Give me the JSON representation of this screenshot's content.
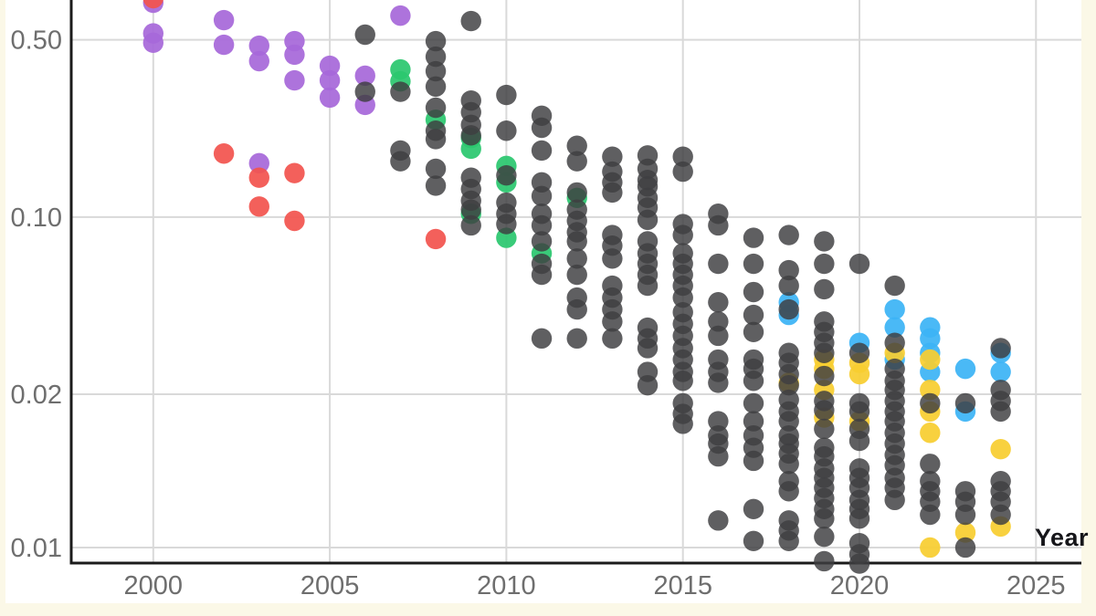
{
  "page": {
    "background_color": "#fbf8e7",
    "panel_color": "#ffffff",
    "gridline_color": "#d9d9d9",
    "axis_color": "#1b1b1b",
    "tick_label_color": "#6e6e6e"
  },
  "chart_data": {
    "type": "scatter",
    "title": "",
    "xlabel": "Year",
    "ylabel": "",
    "y_scale": "log",
    "grid": true,
    "legend": "none",
    "x_ticks": [
      {
        "value": 2000,
        "label": "2000"
      },
      {
        "value": 2005,
        "label": "2005"
      },
      {
        "value": 2010,
        "label": "2010"
      },
      {
        "value": 2015,
        "label": "2015"
      },
      {
        "value": 2020,
        "label": "2020"
      },
      {
        "value": 2025,
        "label": "2025"
      }
    ],
    "y_ticks": [
      {
        "value": 0.5,
        "label": "0.50"
      },
      {
        "value": 0.1,
        "label": "0.10"
      },
      {
        "value": 0.02,
        "label": "0.02"
      },
      {
        "value": 0.01,
        "label": "0.01"
      }
    ],
    "xlim": [
      1997.7,
      2026.7
    ],
    "ylim_visible": [
      0.0093,
      0.715
    ],
    "series": [
      {
        "name": "green",
        "color": "#2bc76f",
        "points": [
          [
            2007,
            0.382
          ],
          [
            2007,
            0.343
          ],
          [
            2008,
            0.242
          ],
          [
            2009,
            0.205
          ],
          [
            2009,
            0.186
          ],
          [
            2009,
            0.103
          ],
          [
            2010,
            0.159
          ],
          [
            2010,
            0.137
          ],
          [
            2010,
            0.0828
          ],
          [
            2011,
            0.0719
          ],
          [
            2012,
            0.119
          ]
        ]
      },
      {
        "name": "purple",
        "color": "#a768d9",
        "points": [
          [
            2000,
            0.7
          ],
          [
            2000,
            0.53
          ],
          [
            2000,
            0.487
          ],
          [
            2002,
            0.598
          ],
          [
            2002,
            0.478
          ],
          [
            2003,
            0.474
          ],
          [
            2003,
            0.412
          ],
          [
            2003,
            0.163
          ],
          [
            2004,
            0.494
          ],
          [
            2004,
            0.437
          ],
          [
            2004,
            0.346
          ],
          [
            2005,
            0.395
          ],
          [
            2005,
            0.346
          ],
          [
            2005,
            0.296
          ],
          [
            2006,
            0.361
          ],
          [
            2006,
            0.277
          ],
          [
            2007,
            0.623
          ]
        ]
      },
      {
        "name": "red",
        "color": "#f2544f",
        "points": [
          [
            2000,
            0.73
          ],
          [
            2002,
            0.178
          ],
          [
            2003,
            0.143
          ],
          [
            2003,
            0.11
          ],
          [
            2004,
            0.149
          ],
          [
            2004,
            0.0966
          ],
          [
            2008,
            0.0819
          ]
        ]
      },
      {
        "name": "blue",
        "color": "#3cb4f5",
        "points": [
          [
            2018,
            0.0461
          ],
          [
            2018,
            0.0411
          ],
          [
            2020,
            0.0319
          ],
          [
            2021,
            0.0432
          ],
          [
            2021,
            0.0367
          ],
          [
            2021,
            0.0274
          ],
          [
            2022,
            0.0367
          ],
          [
            2022,
            0.0332
          ],
          [
            2022,
            0.0291
          ],
          [
            2022,
            0.0245
          ],
          [
            2023,
            0.0252
          ],
          [
            2023,
            0.0185
          ],
          [
            2024,
            0.0291
          ],
          [
            2024,
            0.0245
          ]
        ]
      },
      {
        "name": "yellow",
        "color": "#f7ce30",
        "points": [
          [
            2018,
            0.0222
          ],
          [
            2019,
            0.0274
          ],
          [
            2019,
            0.0252
          ],
          [
            2019,
            0.0208
          ],
          [
            2019,
            0.018
          ],
          [
            2020,
            0.0266
          ],
          [
            2020,
            0.024
          ],
          [
            2020,
            0.0177
          ],
          [
            2021,
            0.0291
          ],
          [
            2022,
            0.0274
          ],
          [
            2022,
            0.0208
          ],
          [
            2022,
            0.0185
          ],
          [
            2022,
            0.0168
          ],
          [
            2022,
            0.01
          ],
          [
            2023,
            0.0107
          ],
          [
            2024,
            0.0156
          ],
          [
            2024,
            0.011
          ]
        ]
      },
      {
        "name": "gray",
        "color": "#3f3f41",
        "points": [
          [
            2006,
            0.524
          ],
          [
            2006,
            0.312
          ],
          [
            2007,
            0.312
          ],
          [
            2007,
            0.183
          ],
          [
            2007,
            0.166
          ],
          [
            2008,
            0.494
          ],
          [
            2008,
            0.429
          ],
          [
            2008,
            0.376
          ],
          [
            2008,
            0.327
          ],
          [
            2008,
            0.27
          ],
          [
            2008,
            0.219
          ],
          [
            2008,
            0.203
          ],
          [
            2008,
            0.155
          ],
          [
            2008,
            0.133
          ],
          [
            2009,
            0.593
          ],
          [
            2009,
            0.288
          ],
          [
            2009,
            0.259
          ],
          [
            2009,
            0.231
          ],
          [
            2009,
            0.21
          ],
          [
            2009,
            0.143
          ],
          [
            2009,
            0.129
          ],
          [
            2009,
            0.116
          ],
          [
            2009,
            0.107
          ],
          [
            2009,
            0.0927
          ],
          [
            2010,
            0.303
          ],
          [
            2010,
            0.219
          ],
          [
            2010,
            0.146
          ],
          [
            2010,
            0.114
          ],
          [
            2010,
            0.103
          ],
          [
            2010,
            0.0938
          ],
          [
            2011,
            0.251
          ],
          [
            2011,
            0.225
          ],
          [
            2011,
            0.183
          ],
          [
            2011,
            0.137
          ],
          [
            2011,
            0.121
          ],
          [
            2011,
            0.103
          ],
          [
            2011,
            0.0927
          ],
          [
            2011,
            0.0802
          ],
          [
            2011,
            0.0654
          ],
          [
            2011,
            0.0592
          ],
          [
            2011,
            0.0332
          ],
          [
            2012,
            0.191
          ],
          [
            2012,
            0.166
          ],
          [
            2012,
            0.125
          ],
          [
            2012,
            0.107
          ],
          [
            2012,
            0.0966
          ],
          [
            2012,
            0.0871
          ],
          [
            2012,
            0.0802
          ],
          [
            2012,
            0.0686
          ],
          [
            2012,
            0.0592
          ],
          [
            2012,
            0.0481
          ],
          [
            2012,
            0.0432
          ],
          [
            2012,
            0.0332
          ],
          [
            2013,
            0.173
          ],
          [
            2013,
            0.151
          ],
          [
            2013,
            0.137
          ],
          [
            2013,
            0.125
          ],
          [
            2013,
            0.0849
          ],
          [
            2013,
            0.0771
          ],
          [
            2013,
            0.0686
          ],
          [
            2013,
            0.0536
          ],
          [
            2013,
            0.0481
          ],
          [
            2013,
            0.0432
          ],
          [
            2013,
            0.0387
          ],
          [
            2013,
            0.0332
          ],
          [
            2014,
            0.175
          ],
          [
            2014,
            0.155
          ],
          [
            2014,
            0.14
          ],
          [
            2014,
            0.132
          ],
          [
            2014,
            0.119
          ],
          [
            2014,
            0.109
          ],
          [
            2014,
            0.0975
          ],
          [
            2014,
            0.0802
          ],
          [
            2014,
            0.0719
          ],
          [
            2014,
            0.0654
          ],
          [
            2014,
            0.0592
          ],
          [
            2014,
            0.0536
          ],
          [
            2014,
            0.0366
          ],
          [
            2014,
            0.0332
          ],
          [
            2014,
            0.0304
          ],
          [
            2014,
            0.0245
          ],
          [
            2014,
            0.0217
          ],
          [
            2015,
            0.173
          ],
          [
            2015,
            0.151
          ],
          [
            2015,
            0.0938
          ],
          [
            2015,
            0.0849
          ],
          [
            2015,
            0.0719
          ],
          [
            2015,
            0.0654
          ],
          [
            2015,
            0.0592
          ],
          [
            2015,
            0.0536
          ],
          [
            2015,
            0.0481
          ],
          [
            2015,
            0.0421
          ],
          [
            2015,
            0.0379
          ],
          [
            2015,
            0.034
          ],
          [
            2015,
            0.0304
          ],
          [
            2015,
            0.0274
          ],
          [
            2015,
            0.0245
          ],
          [
            2015,
            0.0226
          ],
          [
            2015,
            0.0192
          ],
          [
            2015,
            0.0183
          ],
          [
            2015,
            0.0175
          ],
          [
            2016,
            0.103
          ],
          [
            2016,
            0.0927
          ],
          [
            2016,
            0.0654
          ],
          [
            2016,
            0.0461
          ],
          [
            2016,
            0.0387
          ],
          [
            2016,
            0.034
          ],
          [
            2016,
            0.0274
          ],
          [
            2016,
            0.0245
          ],
          [
            2016,
            0.0222
          ],
          [
            2016,
            0.0177
          ],
          [
            2016,
            0.0166
          ],
          [
            2016,
            0.016
          ],
          [
            2016,
            0.0151
          ],
          [
            2016,
            0.0113
          ],
          [
            2017,
            0.0828
          ],
          [
            2017,
            0.0654
          ],
          [
            2017,
            0.0506
          ],
          [
            2017,
            0.0411
          ],
          [
            2017,
            0.0352
          ],
          [
            2017,
            0.0274
          ],
          [
            2017,
            0.0252
          ],
          [
            2017,
            0.0226
          ],
          [
            2017,
            0.0192
          ],
          [
            2017,
            0.0177
          ],
          [
            2017,
            0.0166
          ],
          [
            2017,
            0.0157
          ],
          [
            2017,
            0.0148
          ],
          [
            2017,
            0.0119
          ],
          [
            2017,
            0.0103
          ],
          [
            2018,
            0.0849
          ],
          [
            2018,
            0.0617
          ],
          [
            2018,
            0.0536
          ],
          [
            2018,
            0.0432
          ],
          [
            2018,
            0.0291
          ],
          [
            2018,
            0.0266
          ],
          [
            2018,
            0.024
          ],
          [
            2018,
            0.0217
          ],
          [
            2018,
            0.0195
          ],
          [
            2018,
            0.0185
          ],
          [
            2018,
            0.0177
          ],
          [
            2018,
            0.0166
          ],
          [
            2018,
            0.016
          ],
          [
            2018,
            0.0153
          ],
          [
            2018,
            0.0146
          ],
          [
            2018,
            0.0135
          ],
          [
            2018,
            0.0129
          ],
          [
            2018,
            0.0113
          ],
          [
            2018,
            0.0108
          ],
          [
            2018,
            0.0103
          ],
          [
            2019,
            0.0802
          ],
          [
            2019,
            0.0654
          ],
          [
            2019,
            0.0519
          ],
          [
            2019,
            0.0387
          ],
          [
            2019,
            0.0352
          ],
          [
            2019,
            0.0319
          ],
          [
            2019,
            0.0291
          ],
          [
            2019,
            0.0236
          ],
          [
            2019,
            0.0194
          ],
          [
            2019,
            0.0186
          ],
          [
            2019,
            0.0171
          ],
          [
            2019,
            0.0157
          ],
          [
            2019,
            0.0151
          ],
          [
            2019,
            0.0143
          ],
          [
            2019,
            0.0137
          ],
          [
            2019,
            0.0131
          ],
          [
            2019,
            0.0125
          ],
          [
            2019,
            0.0119
          ],
          [
            2019,
            0.0114
          ],
          [
            2019,
            0.0105
          ],
          [
            2019,
            0.0094
          ],
          [
            2020,
            0.0654
          ],
          [
            2020,
            0.0291
          ],
          [
            2020,
            0.0192
          ],
          [
            2020,
            0.0185
          ],
          [
            2020,
            0.0171
          ],
          [
            2020,
            0.0162
          ],
          [
            2020,
            0.0143
          ],
          [
            2020,
            0.0137
          ],
          [
            2020,
            0.0131
          ],
          [
            2020,
            0.0124
          ],
          [
            2020,
            0.0119
          ],
          [
            2020,
            0.0114
          ],
          [
            2020,
            0.0102
          ],
          [
            2020,
            0.0097
          ],
          [
            2020,
            0.0093
          ],
          [
            2021,
            0.0536
          ],
          [
            2021,
            0.0319
          ],
          [
            2021,
            0.0252
          ],
          [
            2021,
            0.0226
          ],
          [
            2021,
            0.0208
          ],
          [
            2021,
            0.0194
          ],
          [
            2021,
            0.0185
          ],
          [
            2021,
            0.0177
          ],
          [
            2021,
            0.0168
          ],
          [
            2021,
            0.016
          ],
          [
            2021,
            0.0152
          ],
          [
            2021,
            0.0145
          ],
          [
            2021,
            0.0137
          ],
          [
            2021,
            0.0131
          ],
          [
            2021,
            0.0124
          ],
          [
            2022,
            0.0192
          ],
          [
            2022,
            0.0146
          ],
          [
            2022,
            0.0135
          ],
          [
            2022,
            0.0129
          ],
          [
            2022,
            0.0123
          ],
          [
            2022,
            0.0116
          ],
          [
            2023,
            0.0192
          ],
          [
            2023,
            0.0129
          ],
          [
            2023,
            0.0123
          ],
          [
            2023,
            0.0116
          ],
          [
            2023,
            0.01
          ],
          [
            2024,
            0.0304
          ],
          [
            2024,
            0.0208
          ],
          [
            2024,
            0.0194
          ],
          [
            2024,
            0.0185
          ],
          [
            2024,
            0.0135
          ],
          [
            2024,
            0.0129
          ],
          [
            2024,
            0.0123
          ],
          [
            2024,
            0.0116
          ]
        ]
      }
    ]
  }
}
